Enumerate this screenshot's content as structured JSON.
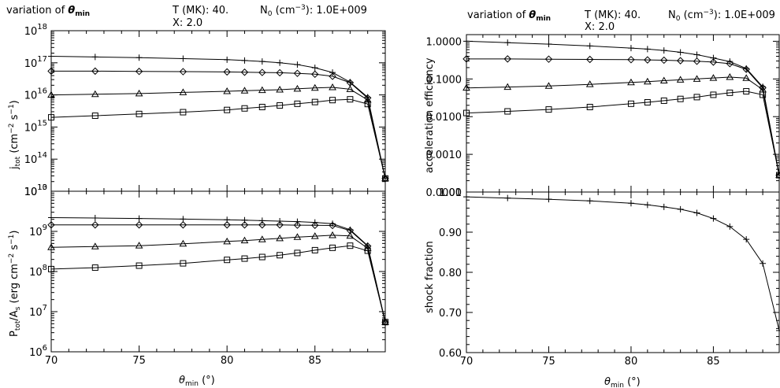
{
  "header": {
    "variation_prefix": "variation of ",
    "theta": "θ",
    "theta_sub": "min",
    "temp_label": "T (MK):",
    "temp_value": "40.",
    "density_N": "N",
    "density_sub": "0",
    "density_unit_a": " (cm",
    "density_unit_exp": "−3",
    "density_unit_b": "):",
    "density_value": "1.0E+009",
    "x_label": "X:",
    "x_value": "2.0"
  },
  "chart_data": [
    {
      "type": "line",
      "panel": "j_tot",
      "ylabel": {
        "main": "j",
        "sub": "tot",
        "unit_a": " (cm",
        "exp1": "−2",
        "unit_b": " s",
        "exp2": "−1",
        "unit_c": ")"
      },
      "xlabel": {
        "main": "θ",
        "sub": "min",
        "unit": " (°)"
      },
      "yscale": "log",
      "ylim": [
        10000000000000.0,
        1e+18
      ],
      "xlim": [
        70,
        89
      ],
      "x_ticks": [
        "70",
        "75",
        "80",
        "85"
      ],
      "y_ticks": [
        {
          "base": "10",
          "exp": "18"
        },
        {
          "base": "10",
          "exp": "17"
        },
        {
          "base": "10",
          "exp": "16"
        },
        {
          "base": "10",
          "exp": "15"
        },
        {
          "base": "10",
          "exp": "14"
        },
        {
          "base": "10",
          "exp": "13"
        }
      ],
      "x": [
        70,
        72.5,
        75,
        77.5,
        80,
        81,
        82,
        83,
        84,
        85,
        86,
        87,
        88,
        89
      ],
      "series": [
        {
          "marker": "plus",
          "values": [
            1.6e+17,
            1.52e+17,
            1.45e+17,
            1.35e+17,
            1.25e+17,
            1.18e+17,
            1.1e+17,
            1e+17,
            8.8e+16,
            7e+16,
            5e+16,
            2.5e+16,
            8500000000000000.0,
            25000000000000.0
          ]
        },
        {
          "marker": "diamond",
          "values": [
            5.5e+16,
            5.5e+16,
            5.4e+16,
            5.3e+16,
            5.2e+16,
            5.1e+16,
            5e+16,
            4.9e+16,
            4.7e+16,
            4.4e+16,
            3.8e+16,
            2.4e+16,
            8000000000000000.0,
            25000000000000.0
          ]
        },
        {
          "marker": "triangle",
          "values": [
            1e+16,
            1.05e+16,
            1.1e+16,
            1.2e+16,
            1.3e+16,
            1.35e+16,
            1.4e+16,
            1.45e+16,
            1.55e+16,
            1.65e+16,
            1.72e+16,
            1.5e+16,
            7000000000000000.0,
            25000000000000.0
          ]
        },
        {
          "marker": "square",
          "values": [
            2000000000000000.0,
            2250000000000000.0,
            2550000000000000.0,
            2900000000000000.0,
            3400000000000000.0,
            3800000000000000.0,
            4200000000000000.0,
            4700000000000000.0,
            5300000000000000.0,
            6000000000000000.0,
            6900000000000000.0,
            7300000000000000.0,
            5200000000000000.0,
            25000000000000.0
          ]
        }
      ]
    },
    {
      "type": "line",
      "panel": "P_tot_over_A_s",
      "ylabel": {
        "main": "P",
        "sub1": "tot",
        "slash": "/A",
        "sub2": "s",
        "unit_a": " (erg cm",
        "exp1": "−2",
        "unit_b": " s",
        "exp2": "−1",
        "unit_c": ")"
      },
      "xlabel": {
        "main": "θ",
        "sub": "min",
        "unit": " (°)"
      },
      "yscale": "log",
      "ylim": [
        1000000.0,
        10000000000.0
      ],
      "xlim": [
        70,
        89
      ],
      "x_ticks": [
        "70",
        "75",
        "80",
        "85"
      ],
      "y_ticks": [
        {
          "base": "10",
          "exp": "10"
        },
        {
          "base": "10",
          "exp": "9"
        },
        {
          "base": "10",
          "exp": "8"
        },
        {
          "base": "10",
          "exp": "7"
        },
        {
          "base": "10",
          "exp": "6"
        }
      ],
      "x": [
        70,
        72.5,
        75,
        77.5,
        80,
        81,
        82,
        83,
        84,
        85,
        86,
        87,
        88,
        89
      ],
      "series": [
        {
          "marker": "plus",
          "values": [
            2200000000.0,
            2150000000.0,
            2100000000.0,
            2020000000.0,
            1950000000.0,
            1900000000.0,
            1850000000.0,
            1800000000.0,
            1750000000.0,
            1670000000.0,
            1550000000.0,
            1100000000.0,
            440000000.0,
            5500000.0
          ]
        },
        {
          "marker": "diamond",
          "values": [
            1450000000.0,
            1450000000.0,
            1450000000.0,
            1450000000.0,
            1450000000.0,
            1450000000.0,
            1450000000.0,
            1450000000.0,
            1430000000.0,
            1420000000.0,
            1400000000.0,
            1050000000.0,
            430000000.0,
            5500000.0
          ]
        },
        {
          "marker": "triangle",
          "values": [
            400000000.0,
            420000000.0,
            440000000.0,
            490000000.0,
            560000000.0,
            590000000.0,
            630000000.0,
            670000000.0,
            720000000.0,
            760000000.0,
            800000000.0,
            770000000.0,
            380000000.0,
            5500000.0
          ]
        },
        {
          "marker": "square",
          "values": [
            115000000.0,
            125000000.0,
            140000000.0,
            160000000.0,
            195000000.0,
            210000000.0,
            230000000.0,
            255000000.0,
            290000000.0,
            340000000.0,
            390000000.0,
            440000000.0,
            330000000.0,
            5500000.0
          ]
        }
      ]
    },
    {
      "type": "line",
      "panel": "acceleration_efficiency",
      "ylabel": {
        "text": "acceleration efficiency"
      },
      "xlabel": {
        "main": "θ",
        "sub": "min",
        "unit": " (°)"
      },
      "yscale": "log",
      "ylim": [
        0.0001,
        1.5
      ],
      "xlim": [
        70,
        89
      ],
      "x_ticks": [
        "70",
        "75",
        "80",
        "85"
      ],
      "y_ticks": [
        "1.0000",
        "0.1000",
        "0.0100",
        "0.0010",
        "0.0001"
      ],
      "x": [
        70,
        72.5,
        75,
        77.5,
        80,
        81,
        82,
        83,
        84,
        85,
        86,
        87,
        88,
        89
      ],
      "series": [
        {
          "marker": "plus",
          "values": [
            1.0,
            0.92,
            0.84,
            0.75,
            0.66,
            0.62,
            0.57,
            0.51,
            0.44,
            0.36,
            0.29,
            0.19,
            0.062,
            0.00028
          ]
        },
        {
          "marker": "diamond",
          "values": [
            0.34,
            0.34,
            0.335,
            0.33,
            0.325,
            0.32,
            0.315,
            0.305,
            0.295,
            0.28,
            0.255,
            0.18,
            0.058,
            0.00028
          ]
        },
        {
          "marker": "triangle",
          "values": [
            0.058,
            0.061,
            0.065,
            0.072,
            0.081,
            0.085,
            0.09,
            0.095,
            0.1,
            0.106,
            0.112,
            0.105,
            0.052,
            0.00028
          ]
        },
        {
          "marker": "square",
          "values": [
            0.0125,
            0.0138,
            0.0155,
            0.018,
            0.022,
            0.024,
            0.0265,
            0.0295,
            0.033,
            0.038,
            0.043,
            0.047,
            0.038,
            0.00028
          ]
        }
      ]
    },
    {
      "type": "line",
      "panel": "shock_fraction",
      "ylabel": {
        "text": "shock fraction"
      },
      "xlabel": {
        "main": "θ",
        "sub": "min",
        "unit": " (°)"
      },
      "yscale": "linear",
      "ylim": [
        0.6,
        1.0
      ],
      "xlim": [
        70,
        89
      ],
      "x_ticks": [
        "70",
        "75",
        "80",
        "85"
      ],
      "y_ticks": [
        "1.00",
        "0.90",
        "0.80",
        "0.70",
        "0.60"
      ],
      "x": [
        70,
        72.5,
        75,
        77.5,
        80,
        81,
        82,
        83,
        84,
        85,
        86,
        87,
        88,
        89
      ],
      "series": [
        {
          "marker": "plus",
          "values": [
            0.988,
            0.985,
            0.982,
            0.978,
            0.972,
            0.968,
            0.963,
            0.957,
            0.948,
            0.934,
            0.914,
            0.882,
            0.822,
            0.655
          ]
        }
      ]
    }
  ]
}
